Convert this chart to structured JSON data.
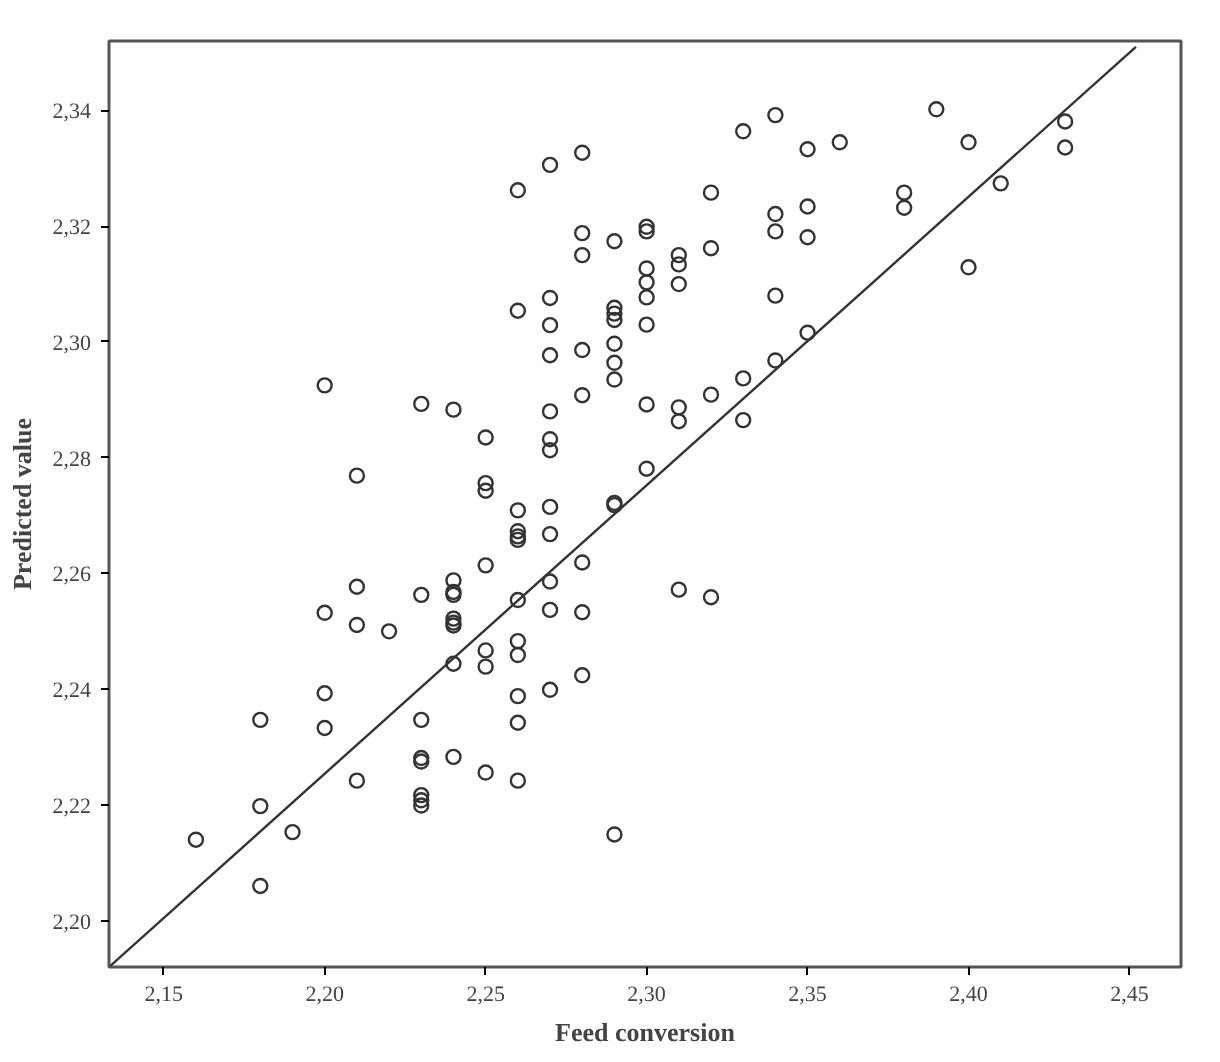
{
  "chart_data": {
    "type": "scatter",
    "xlabel": "Feed conversion",
    "ylabel": "Predicted value",
    "xlim": [
      2.133,
      2.466
    ],
    "ylim": [
      2.192,
      2.352
    ],
    "xticks": [
      {
        "value": 2.15,
        "label": "2,15"
      },
      {
        "value": 2.2,
        "label": "2,20"
      },
      {
        "value": 2.25,
        "label": "2,25"
      },
      {
        "value": 2.3,
        "label": "2,30"
      },
      {
        "value": 2.35,
        "label": "2,35"
      },
      {
        "value": 2.4,
        "label": "2,40"
      },
      {
        "value": 2.45,
        "label": "2,45"
      }
    ],
    "yticks": [
      {
        "value": 2.2,
        "label": "2,20"
      },
      {
        "value": 2.22,
        "label": "2,22"
      },
      {
        "value": 2.24,
        "label": "2,24"
      },
      {
        "value": 2.26,
        "label": "2,26"
      },
      {
        "value": 2.28,
        "label": "2,28"
      },
      {
        "value": 2.3,
        "label": "2,30"
      },
      {
        "value": 2.32,
        "label": "2,32"
      },
      {
        "value": 2.34,
        "label": "2,34"
      }
    ],
    "grid": false,
    "marker": "circle",
    "series": [
      {
        "color": "#333333",
        "x": [
          2.16,
          2.18,
          2.18,
          2.18,
          2.19,
          2.2,
          2.2,
          2.2,
          2.2,
          2.21,
          2.21,
          2.21,
          2.21,
          2.22,
          2.23,
          2.23,
          2.23,
          2.23,
          2.23,
          2.23,
          2.23,
          2.23,
          2.24,
          2.24,
          2.24,
          2.24,
          2.24,
          2.24,
          2.24,
          2.24,
          2.24,
          2.25,
          2.25,
          2.25,
          2.25,
          2.25,
          2.25,
          2.25,
          2.26,
          2.26,
          2.26,
          2.26,
          2.26,
          2.26,
          2.26,
          2.26,
          2.26,
          2.26,
          2.26,
          2.26,
          2.27,
          2.27,
          2.27,
          2.27,
          2.27,
          2.27,
          2.27,
          2.27,
          2.27,
          2.27,
          2.27,
          2.27,
          2.28,
          2.28,
          2.28,
          2.28,
          2.28,
          2.28,
          2.28,
          2.28,
          2.29,
          2.29,
          2.29,
          2.29,
          2.29,
          2.29,
          2.29,
          2.29,
          2.29,
          2.29,
          2.3,
          2.3,
          2.3,
          2.3,
          2.3,
          2.3,
          2.3,
          2.3,
          2.31,
          2.31,
          2.31,
          2.31,
          2.31,
          2.31,
          2.32,
          2.32,
          2.32,
          2.32,
          2.33,
          2.33,
          2.33,
          2.34,
          2.34,
          2.34,
          2.34,
          2.34,
          2.35,
          2.35,
          2.35,
          2.35,
          2.36,
          2.38,
          2.38,
          2.39,
          2.4,
          2.4,
          2.41,
          2.43,
          2.43
        ],
        "values": [
          2.214,
          2.206,
          2.2198,
          2.2347,
          2.2153,
          2.2925,
          2.2532,
          2.2393,
          2.2333,
          2.2769,
          2.2577,
          2.2511,
          2.2242,
          2.25,
          2.2893,
          2.2563,
          2.2347,
          2.2281,
          2.2275,
          2.2217,
          2.2208,
          2.2199,
          2.2883,
          2.2588,
          2.2568,
          2.2563,
          2.2522,
          2.2515,
          2.251,
          2.2444,
          2.2283,
          2.2835,
          2.2756,
          2.2743,
          2.2614,
          2.2467,
          2.2439,
          2.2256,
          2.3262,
          2.3054,
          2.2709,
          2.2673,
          2.2664,
          2.2658,
          2.2554,
          2.2483,
          2.2459,
          2.2388,
          2.2342,
          2.2242,
          2.3306,
          2.3076,
          2.3029,
          2.2977,
          2.288,
          2.2832,
          2.2813,
          2.2715,
          2.2668,
          2.2586,
          2.2537,
          2.2399,
          2.3327,
          2.3188,
          2.315,
          2.2986,
          2.2908,
          2.2619,
          2.2533,
          2.2424,
          2.3174,
          2.3059,
          2.3049,
          2.3038,
          2.2997,
          2.2964,
          2.2935,
          2.2722,
          2.2718,
          2.2149,
          2.3199,
          2.3191,
          2.3127,
          2.3103,
          2.3077,
          2.303,
          2.2892,
          2.2781,
          2.315,
          2.3134,
          2.31,
          2.2887,
          2.2863,
          2.2572,
          2.3258,
          2.3162,
          2.2909,
          2.2559,
          2.3364,
          2.2937,
          2.2865,
          2.3392,
          2.3221,
          2.3191,
          2.308,
          2.2968,
          2.3333,
          2.3234,
          2.3181,
          2.3016,
          2.3345,
          2.3258,
          2.3232,
          2.3402,
          2.3345,
          2.3129,
          2.3274,
          2.3381,
          2.3336
        ]
      },
      {
        "type": "line",
        "marker": "none",
        "color": "#333333",
        "x": [
          2.133,
          2.452
        ],
        "values": [
          2.192,
          2.351
        ]
      }
    ]
  }
}
